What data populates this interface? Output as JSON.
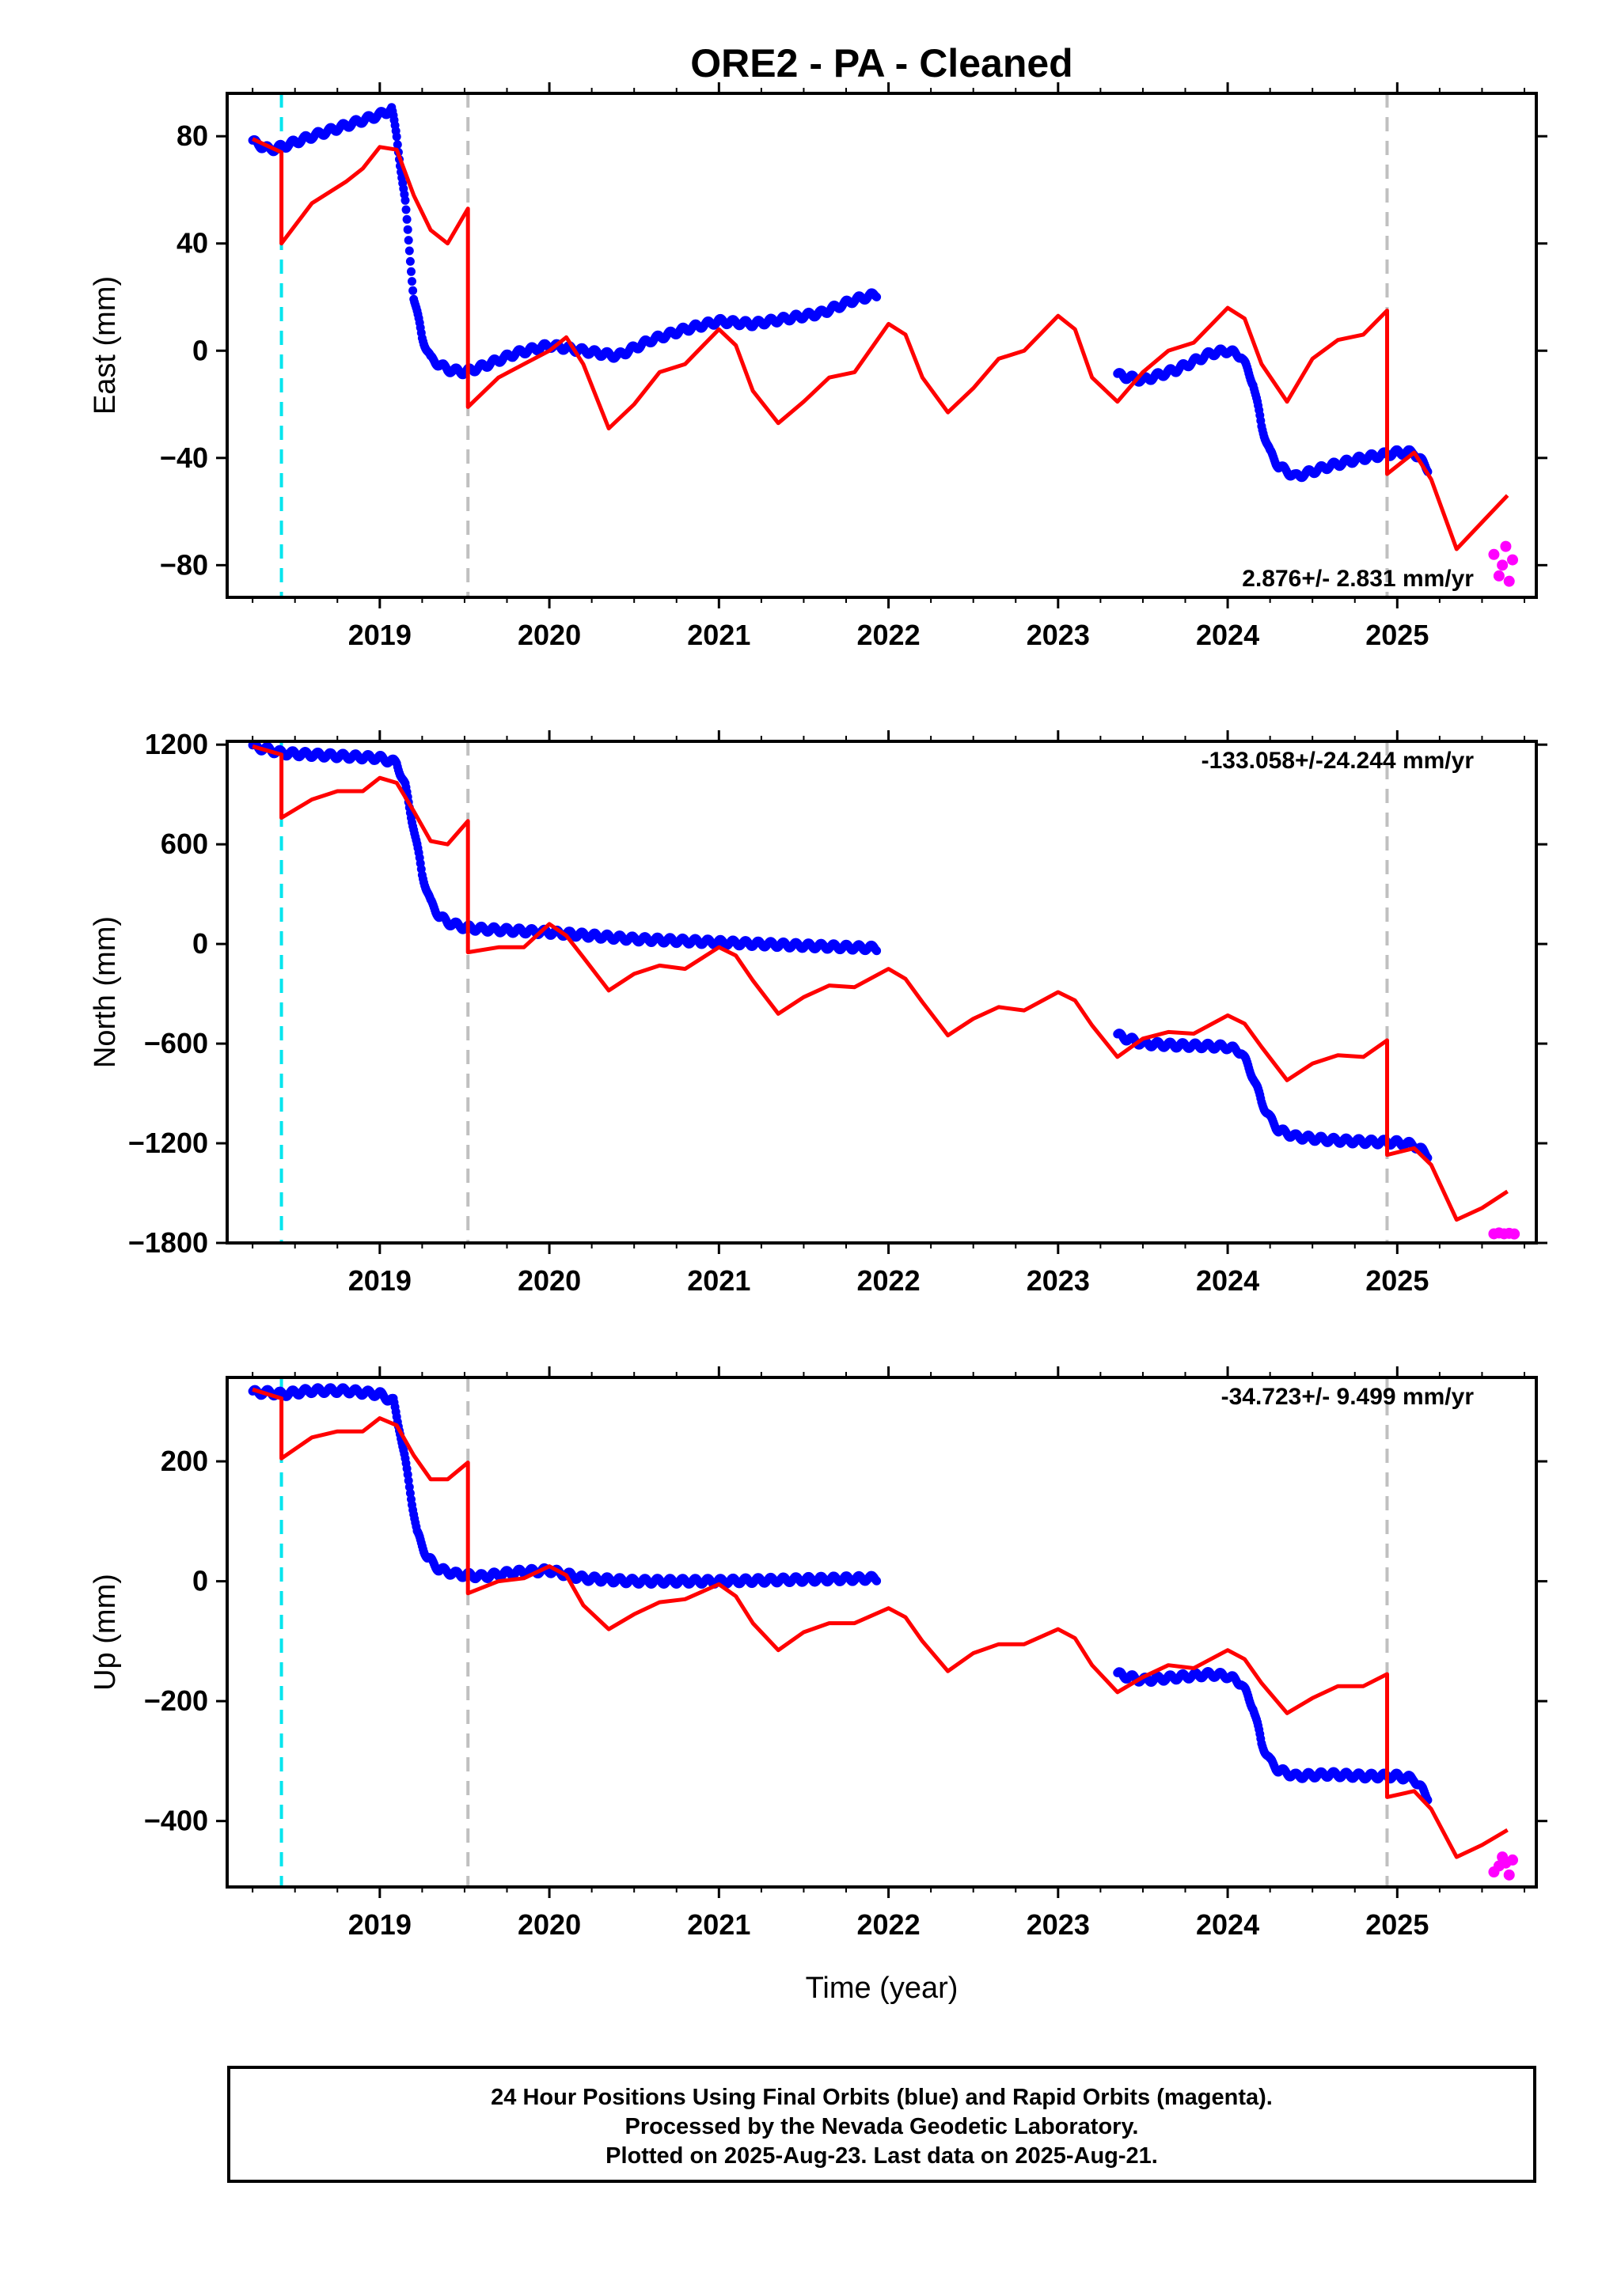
{
  "chart_data": {
    "type": "scatter",
    "title": "ORE2  - PA - Cleaned",
    "xlabel": "Time (year)",
    "x_ticks": [
      "2019",
      "2020",
      "2021",
      "2022",
      "2023",
      "2024",
      "2025"
    ],
    "xlim": [
      2018.1,
      2025.82
    ],
    "vertical_lines": [
      {
        "x": 2018.42,
        "color": "#00e5ee",
        "style": "dashed"
      },
      {
        "x": 2019.52,
        "color": "#c0c0c0",
        "style": "dashed"
      },
      {
        "x": 2024.94,
        "color": "#c0c0c0",
        "style": "dashed"
      }
    ],
    "colors": {
      "final_orbits": "#0000ff",
      "rapid_orbits": "#ff00ff",
      "model": "#ff0000"
    },
    "grid": false,
    "panels": [
      {
        "ylabel": "East (mm)",
        "ylim": [
          -92,
          96
        ],
        "y_ticks": [
          80,
          40,
          0,
          -40,
          -80
        ],
        "y_tick_labels": [
          "80",
          "40",
          "0",
          "−40",
          "−80"
        ],
        "rate_label": "2.876+/- 2.831 mm/yr",
        "series": [
          {
            "role": "final_orbits",
            "x": [
              2018.25,
              2018.35,
              2018.42,
              2018.6,
              2018.8,
              2019.0,
              2019.07,
              2019.1,
              2019.15,
              2019.2,
              2019.25,
              2019.3,
              2019.4,
              2019.5,
              2019.6,
              2019.8,
              2020.0,
              2020.2,
              2020.4,
              2020.6,
              2020.8,
              2021.0,
              2021.2,
              2021.4,
              2021.6,
              2021.8,
              2021.93
            ],
            "y": [
              78,
              75,
              76,
              80,
              84,
              88,
              90,
              80,
              55,
              20,
              5,
              -3,
              -7,
              -8,
              -6,
              -1,
              2,
              0,
              -2,
              4,
              8,
              11,
              10,
              12,
              14,
              19,
              21
            ]
          },
          {
            "role": "final_orbits",
            "x": [
              2023.35,
              2023.5,
              2023.7,
              2023.9,
              2024.0,
              2024.08,
              2024.15,
              2024.2,
              2024.25,
              2024.3,
              2024.4,
              2024.6,
              2024.8,
              2025.0,
              2025.1,
              2025.18
            ],
            "y": [
              -9,
              -11,
              -7,
              -1,
              0,
              -2,
              -12,
              -28,
              -38,
              -43,
              -47,
              -43,
              -40,
              -38,
              -38,
              -44
            ]
          },
          {
            "role": "rapid_orbits",
            "x": [
              2025.57,
              2025.6,
              2025.62,
              2025.64,
              2025.66,
              2025.68
            ],
            "y": [
              -76,
              -84,
              -80,
              -73,
              -86,
              -78
            ]
          },
          {
            "role": "model",
            "x": [
              2018.25,
              2018.42,
              2018.42,
              2018.6,
              2018.8,
              2018.9,
              2019.0,
              2019.1,
              2019.2,
              2019.3,
              2019.4,
              2019.52,
              2019.52,
              2019.7,
              2019.85,
              2020.0,
              2020.1,
              2020.2,
              2020.35,
              2020.5,
              2020.65,
              2020.8,
              2021.0,
              2021.1,
              2021.2,
              2021.35,
              2021.5,
              2021.65,
              2021.8,
              2022.0,
              2022.1,
              2022.2,
              2022.35,
              2022.5,
              2022.65,
              2022.8,
              2023.0,
              2023.1,
              2023.2,
              2023.35,
              2023.5,
              2023.65,
              2023.8,
              2024.0,
              2024.1,
              2024.2,
              2024.35,
              2024.5,
              2024.65,
              2024.8,
              2024.94,
              2024.94,
              2025.1,
              2025.2,
              2025.35,
              2025.5,
              2025.65
            ],
            "y": [
              79,
              74,
              40,
              55,
              63,
              68,
              76,
              75,
              58,
              45,
              40,
              53,
              -21,
              -10,
              -5,
              0,
              5,
              -5,
              -29,
              -20,
              -8,
              -5,
              8,
              2,
              -15,
              -27,
              -19,
              -10,
              -8,
              10,
              6,
              -10,
              -23,
              -14,
              -3,
              0,
              13,
              8,
              -10,
              -19,
              -8,
              0,
              3,
              16,
              12,
              -5,
              -19,
              -3,
              4,
              6,
              15,
              -46,
              -38,
              -48,
              -74,
              -64,
              -54
            ]
          }
        ]
      },
      {
        "ylabel": "North (mm)",
        "ylim": [
          -1800,
          1220
        ],
        "y_ticks": [
          1200,
          600,
          0,
          -600,
          -1200,
          -1800
        ],
        "y_tick_labels": [
          "1200",
          "600",
          "0",
          "−600",
          "−1200",
          "−1800"
        ],
        "rate_label": "-133.058+/-24.244 mm/yr",
        "series": [
          {
            "role": "final_orbits",
            "x": [
              2018.25,
              2018.35,
              2018.42,
              2018.6,
              2018.8,
              2019.0,
              2019.1,
              2019.15,
              2019.2,
              2019.25,
              2019.3,
              2019.35,
              2019.4,
              2019.5,
              2019.6,
              2020.0,
              2020.5,
              2021.0,
              2021.5,
              2021.93
            ],
            "y": [
              1190,
              1170,
              1150,
              1140,
              1130,
              1120,
              1090,
              950,
              700,
              420,
              250,
              170,
              130,
              100,
              90,
              70,
              30,
              10,
              -10,
              -25
            ]
          },
          {
            "role": "final_orbits",
            "x": [
              2023.35,
              2023.5,
              2023.7,
              2023.9,
              2024.0,
              2024.08,
              2024.15,
              2024.2,
              2024.25,
              2024.3,
              2024.4,
              2024.6,
              2024.8,
              2025.0,
              2025.1,
              2025.18
            ],
            "y": [
              -550,
              -600,
              -610,
              -615,
              -620,
              -650,
              -800,
              -950,
              -1050,
              -1120,
              -1160,
              -1180,
              -1190,
              -1195,
              -1210,
              -1270
            ]
          },
          {
            "role": "rapid_orbits",
            "x": [
              2025.57,
              2025.6,
              2025.63,
              2025.66,
              2025.69
            ],
            "y": [
              -1745,
              -1740,
              -1745,
              -1742,
              -1746
            ]
          },
          {
            "role": "model",
            "x": [
              2018.25,
              2018.42,
              2018.42,
              2018.6,
              2018.75,
              2018.9,
              2019.0,
              2019.1,
              2019.2,
              2019.3,
              2019.4,
              2019.52,
              2019.52,
              2019.7,
              2019.85,
              2020.0,
              2020.1,
              2020.2,
              2020.35,
              2020.5,
              2020.65,
              2020.8,
              2021.0,
              2021.1,
              2021.2,
              2021.35,
              2021.5,
              2021.65,
              2021.8,
              2022.0,
              2022.1,
              2022.2,
              2022.35,
              2022.5,
              2022.65,
              2022.8,
              2023.0,
              2023.1,
              2023.2,
              2023.35,
              2023.5,
              2023.65,
              2023.8,
              2024.0,
              2024.1,
              2024.2,
              2024.35,
              2024.5,
              2024.65,
              2024.8,
              2024.94,
              2024.94,
              2025.1,
              2025.2,
              2025.35,
              2025.5,
              2025.65
            ],
            "y": [
              1190,
              1140,
              760,
              870,
              920,
              920,
              1000,
              970,
              800,
              620,
              600,
              740,
              -50,
              -20,
              -20,
              120,
              50,
              -80,
              -280,
              -180,
              -130,
              -150,
              -20,
              -70,
              -220,
              -420,
              -320,
              -250,
              -260,
              -150,
              -210,
              -350,
              -550,
              -450,
              -380,
              -400,
              -290,
              -340,
              -490,
              -680,
              -570,
              -530,
              -540,
              -430,
              -480,
              -620,
              -820,
              -720,
              -670,
              -680,
              -580,
              -1270,
              -1230,
              -1330,
              -1660,
              -1590,
              -1490
            ]
          }
        ]
      },
      {
        "ylabel": "Up (mm)",
        "ylim": [
          -510,
          340
        ],
        "y_ticks": [
          200,
          0,
          -200,
          -400
        ],
        "y_tick_labels": [
          "200",
          "0",
          "−200",
          "−400"
        ],
        "rate_label": "-34.723+/- 9.499 mm/yr",
        "series": [
          {
            "role": "final_orbits",
            "x": [
              2018.25,
              2018.35,
              2018.42,
              2018.6,
              2018.8,
              2019.0,
              2019.08,
              2019.12,
              2019.18,
              2019.22,
              2019.28,
              2019.35,
              2019.45,
              2019.6,
              2019.8,
              2020.0,
              2020.2,
              2020.5,
              2021.0,
              2021.5,
              2021.93
            ],
            "y": [
              315,
              315,
              312,
              318,
              318,
              312,
              300,
              250,
              150,
              80,
              40,
              20,
              12,
              8,
              15,
              18,
              5,
              0,
              0,
              3,
              5
            ]
          },
          {
            "role": "final_orbits",
            "x": [
              2023.35,
              2023.5,
              2023.7,
              2023.9,
              2024.0,
              2024.08,
              2024.15,
              2024.2,
              2024.25,
              2024.3,
              2024.4,
              2024.6,
              2024.8,
              2025.0,
              2025.1,
              2025.18
            ],
            "y": [
              -155,
              -165,
              -160,
              -155,
              -158,
              -170,
              -210,
              -270,
              -300,
              -315,
              -325,
              -322,
              -325,
              -325,
              -330,
              -360
            ]
          },
          {
            "role": "rapid_orbits",
            "x": [
              2025.57,
              2025.6,
              2025.62,
              2025.64,
              2025.66,
              2025.68
            ],
            "y": [
              -485,
              -475,
              -460,
              -470,
              -490,
              -465
            ]
          },
          {
            "role": "model",
            "x": [
              2018.25,
              2018.42,
              2018.42,
              2018.6,
              2018.75,
              2018.9,
              2019.0,
              2019.1,
              2019.2,
              2019.3,
              2019.4,
              2019.52,
              2019.52,
              2019.7,
              2019.85,
              2020.0,
              2020.1,
              2020.2,
              2020.35,
              2020.5,
              2020.65,
              2020.8,
              2021.0,
              2021.1,
              2021.2,
              2021.35,
              2021.5,
              2021.65,
              2021.8,
              2022.0,
              2022.1,
              2022.2,
              2022.35,
              2022.5,
              2022.65,
              2022.8,
              2023.0,
              2023.1,
              2023.2,
              2023.35,
              2023.5,
              2023.65,
              2023.8,
              2024.0,
              2024.1,
              2024.2,
              2024.35,
              2024.5,
              2024.65,
              2024.8,
              2024.94,
              2024.94,
              2025.1,
              2025.2,
              2025.35,
              2025.5,
              2025.65
            ],
            "y": [
              320,
              305,
              205,
              240,
              250,
              250,
              272,
              260,
              210,
              170,
              170,
              198,
              -20,
              0,
              5,
              25,
              10,
              -40,
              -80,
              -55,
              -35,
              -30,
              -5,
              -25,
              -70,
              -115,
              -85,
              -70,
              -70,
              -45,
              -60,
              -100,
              -150,
              -120,
              -105,
              -105,
              -80,
              -95,
              -140,
              -185,
              -160,
              -140,
              -145,
              -115,
              -130,
              -170,
              -220,
              -195,
              -175,
              -175,
              -155,
              -360,
              -350,
              -380,
              -460,
              -440,
              -415
            ]
          }
        ]
      }
    ]
  },
  "footer": {
    "line1": "24 Hour Positions Using Final Orbits (blue) and Rapid Orbits (magenta).",
    "line2": "Processed by the Nevada Geodetic Laboratory.",
    "line3": "Plotted on 2025-Aug-23. Last data on 2025-Aug-21."
  }
}
